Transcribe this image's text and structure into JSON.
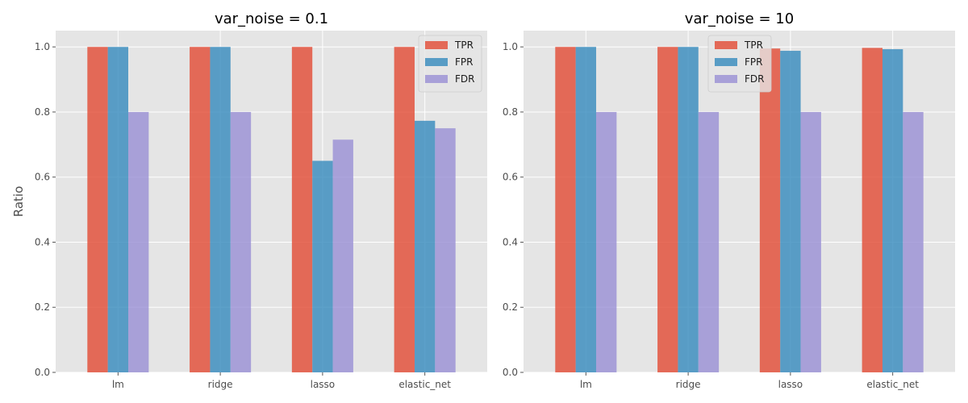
{
  "chart_data": [
    {
      "type": "bar",
      "title": "var_noise = 0.1",
      "xlabel": "",
      "ylabel": "Ratio",
      "ylim": [
        0,
        1.05
      ],
      "yticks": [
        "0.0",
        "0.2",
        "0.4",
        "0.6",
        "0.8",
        "1.0"
      ],
      "categories": [
        "lm",
        "ridge",
        "lasso",
        "elastic_net"
      ],
      "series": [
        {
          "name": "TPR",
          "color": "#E24A33",
          "values": [
            1.0,
            1.0,
            1.0,
            1.0
          ]
        },
        {
          "name": "FPR",
          "color": "#348ABD",
          "values": [
            1.0,
            1.0,
            0.65,
            0.773
          ]
        },
        {
          "name": "FDR",
          "color": "#988ED5",
          "values": [
            0.8,
            0.8,
            0.715,
            0.75
          ]
        }
      ],
      "grid": true,
      "legend_position": "top-right"
    },
    {
      "type": "bar",
      "title": "var_noise = 10",
      "xlabel": "",
      "ylabel": "",
      "ylim": [
        0,
        1.05
      ],
      "yticks": [
        "0.0",
        "0.2",
        "0.4",
        "0.6",
        "0.8",
        "1.0"
      ],
      "categories": [
        "lm",
        "ridge",
        "lasso",
        "elastic_net"
      ],
      "series": [
        {
          "name": "TPR",
          "color": "#E24A33",
          "values": [
            1.0,
            1.0,
            0.995,
            0.997
          ]
        },
        {
          "name": "FPR",
          "color": "#348ABD",
          "values": [
            1.0,
            1.0,
            0.988,
            0.993
          ]
        },
        {
          "name": "FDR",
          "color": "#988ED5",
          "values": [
            0.8,
            0.8,
            0.8,
            0.8
          ]
        }
      ],
      "grid": true,
      "legend_position": "top-center"
    }
  ]
}
